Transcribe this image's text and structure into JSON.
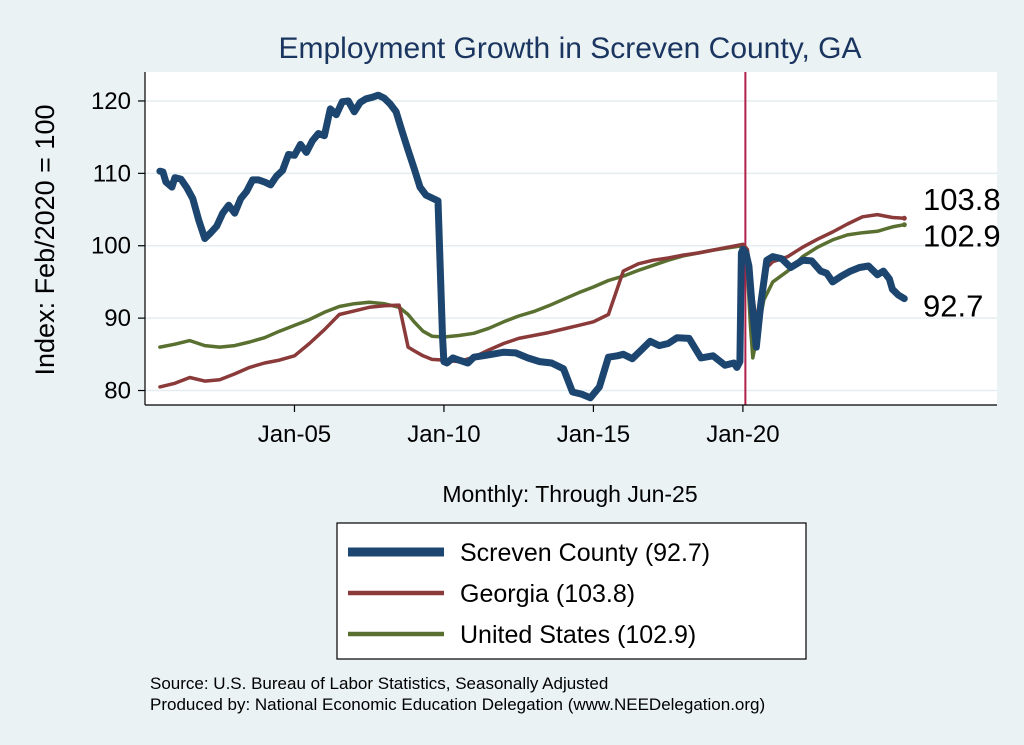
{
  "chart_data": {
    "type": "line",
    "title": "Employment Growth in Screven  County, GA",
    "xlabel": "Monthly: Through Jun-25",
    "ylabel": "Index: Feb/2020 = 100",
    "ylim": [
      78,
      124
    ],
    "yticks": [
      80,
      90,
      100,
      110,
      120
    ],
    "xlim": [
      2000.0,
      2028.5
    ],
    "xticks": [
      {
        "value": 2005.0,
        "label": "Jan-05"
      },
      {
        "value": 2010.0,
        "label": "Jan-10"
      },
      {
        "value": 2015.0,
        "label": "Jan-15"
      },
      {
        "value": 2020.0,
        "label": "Jan-20"
      }
    ],
    "reference_line": {
      "x": 2020.083
    },
    "series": [
      {
        "name": "Screven  County",
        "legend": "Screven  County (92.7)",
        "end_label": "92.7",
        "color": "#1c4670",
        "width": 7,
        "x": [
          2000.5,
          2000.6,
          2000.7,
          2000.9,
          2001.0,
          2001.2,
          2001.4,
          2001.6,
          2001.8,
          2002.0,
          2002.2,
          2002.4,
          2002.6,
          2002.8,
          2003.0,
          2003.2,
          2003.4,
          2003.6,
          2003.8,
          2004.0,
          2004.2,
          2004.4,
          2004.6,
          2004.8,
          2005.0,
          2005.2,
          2005.4,
          2005.6,
          2005.8,
          2006.0,
          2006.2,
          2006.4,
          2006.6,
          2006.8,
          2007.0,
          2007.2,
          2007.4,
          2007.6,
          2007.8,
          2008.0,
          2008.2,
          2008.4,
          2008.6,
          2008.8,
          2009.0,
          2009.2,
          2009.4,
          2009.6,
          2009.8,
          2009.95,
          2010.0,
          2010.1,
          2010.3,
          2010.5,
          2010.8,
          2011.0,
          2011.3,
          2011.6,
          2012.0,
          2012.4,
          2012.8,
          2013.2,
          2013.6,
          2014.0,
          2014.3,
          2014.6,
          2014.9,
          2015.2,
          2015.5,
          2015.8,
          2016.0,
          2016.3,
          2016.6,
          2016.9,
          2017.2,
          2017.5,
          2017.8,
          2018.2,
          2018.6,
          2019.0,
          2019.4,
          2019.7,
          2019.8,
          2019.9,
          2019.95,
          2020.0,
          2020.1,
          2020.2,
          2020.3,
          2020.45,
          2020.6,
          2020.8,
          2021.0,
          2021.3,
          2021.6,
          2022.0,
          2022.3,
          2022.6,
          2022.8,
          2023.0,
          2023.3,
          2023.6,
          2023.9,
          2024.2,
          2024.5,
          2024.7,
          2024.9,
          2025.0,
          2025.2,
          2025.4
        ],
        "values": [
          110.3,
          110.2,
          108.8,
          108.1,
          109.4,
          109.2,
          108.0,
          106.5,
          103.5,
          101.0,
          101.8,
          102.7,
          104.5,
          105.6,
          104.5,
          106.5,
          107.5,
          109.1,
          109.1,
          108.8,
          108.4,
          109.6,
          110.4,
          112.6,
          112.5,
          114.0,
          112.9,
          114.5,
          115.5,
          115.2,
          118.9,
          118.1,
          119.9,
          120.0,
          118.5,
          119.8,
          120.3,
          120.5,
          120.8,
          120.4,
          119.6,
          118.5,
          115.8,
          113.2,
          110.7,
          108.1,
          107.0,
          106.6,
          106.2,
          87.5,
          84.0,
          83.8,
          84.5,
          84.2,
          83.8,
          84.6,
          84.8,
          85.0,
          85.3,
          85.2,
          84.5,
          84.0,
          83.8,
          83.0,
          79.8,
          79.5,
          79.0,
          80.5,
          84.6,
          84.8,
          85.0,
          84.4,
          85.6,
          86.8,
          86.2,
          86.5,
          87.3,
          87.2,
          84.5,
          84.8,
          83.5,
          83.8,
          83.2,
          84.0,
          99.0,
          99.5,
          99.0,
          97.2,
          92.0,
          86.0,
          92.0,
          98.0,
          98.5,
          98.2,
          97.0,
          98.0,
          97.9,
          96.5,
          96.2,
          95.0,
          95.8,
          96.5,
          97.0,
          97.2,
          96.0,
          96.5,
          95.4,
          94.0,
          93.2,
          92.7
        ]
      },
      {
        "name": "Georgia",
        "legend": "Georgia (103.8)",
        "end_label": "103.8",
        "color": "#8b3a3a",
        "width": 3.5,
        "x": [
          2000.5,
          2001.0,
          2001.5,
          2002.0,
          2002.5,
          2003.0,
          2003.5,
          2004.0,
          2004.5,
          2005.0,
          2005.5,
          2006.0,
          2006.5,
          2007.0,
          2007.5,
          2008.0,
          2008.5,
          2008.8,
          2009.0,
          2009.3,
          2009.6,
          2010.0,
          2010.5,
          2011.0,
          2011.5,
          2012.0,
          2012.5,
          2013.0,
          2013.5,
          2014.0,
          2014.5,
          2015.0,
          2015.5,
          2016.0,
          2016.5,
          2017.0,
          2017.5,
          2018.0,
          2018.5,
          2019.0,
          2019.5,
          2020.0,
          2020.15,
          2020.3,
          2020.5,
          2020.8,
          2021.0,
          2021.5,
          2022.0,
          2022.5,
          2023.0,
          2023.5,
          2024.0,
          2024.5,
          2025.0,
          2025.4
        ],
        "values": [
          80.5,
          81.0,
          81.8,
          81.3,
          81.5,
          82.3,
          83.2,
          83.8,
          84.2,
          84.8,
          86.5,
          88.4,
          90.5,
          91.0,
          91.5,
          91.7,
          91.8,
          86.0,
          85.5,
          84.8,
          84.3,
          84.2,
          84.0,
          84.6,
          85.6,
          86.5,
          87.2,
          87.6,
          88.0,
          88.5,
          89.0,
          89.5,
          90.5,
          96.5,
          97.5,
          98.0,
          98.3,
          98.7,
          99.0,
          99.4,
          99.8,
          100.2,
          99.5,
          94.0,
          88.0,
          97.0,
          97.8,
          98.5,
          99.8,
          100.9,
          101.9,
          103.0,
          104.0,
          104.3,
          103.9,
          103.8
        ]
      },
      {
        "name": "United States",
        "legend": "United States (102.9)",
        "end_label": "102.9",
        "color": "#5a7030",
        "width": 3.5,
        "x": [
          2000.5,
          2001.0,
          2001.5,
          2002.0,
          2002.5,
          2003.0,
          2003.5,
          2004.0,
          2004.5,
          2005.0,
          2005.5,
          2006.0,
          2006.5,
          2007.0,
          2007.5,
          2008.0,
          2008.5,
          2008.8,
          2009.0,
          2009.3,
          2009.6,
          2010.0,
          2010.5,
          2011.0,
          2011.5,
          2012.0,
          2012.5,
          2013.0,
          2013.5,
          2014.0,
          2014.5,
          2015.0,
          2015.5,
          2016.0,
          2016.5,
          2017.0,
          2017.5,
          2018.0,
          2018.5,
          2019.0,
          2019.5,
          2020.0,
          2020.12,
          2020.25,
          2020.33,
          2020.45,
          2020.7,
          2021.0,
          2021.5,
          2022.0,
          2022.5,
          2023.0,
          2023.5,
          2024.0,
          2024.5,
          2025.0,
          2025.4
        ],
        "values": [
          86.0,
          86.4,
          86.9,
          86.2,
          86.0,
          86.2,
          86.7,
          87.3,
          88.2,
          89.0,
          89.8,
          90.8,
          91.6,
          92.0,
          92.2,
          92.0,
          91.5,
          90.5,
          89.5,
          88.2,
          87.5,
          87.4,
          87.6,
          87.9,
          88.6,
          89.5,
          90.3,
          90.9,
          91.7,
          92.6,
          93.5,
          94.3,
          95.2,
          95.8,
          96.6,
          97.3,
          98.0,
          98.6,
          99.0,
          99.4,
          99.7,
          100.0,
          99.0,
          89.0,
          84.5,
          87.0,
          92.5,
          95.0,
          96.5,
          98.5,
          99.8,
          100.8,
          101.5,
          101.8,
          102.0,
          102.6,
          102.9
        ]
      }
    ]
  },
  "footer": {
    "source": "Source: U.S. Bureau of Labor Statistics, Seasonally Adjusted",
    "producer": "Produced by: National Economic Education Delegation (www.NEEDelegation.org)"
  }
}
